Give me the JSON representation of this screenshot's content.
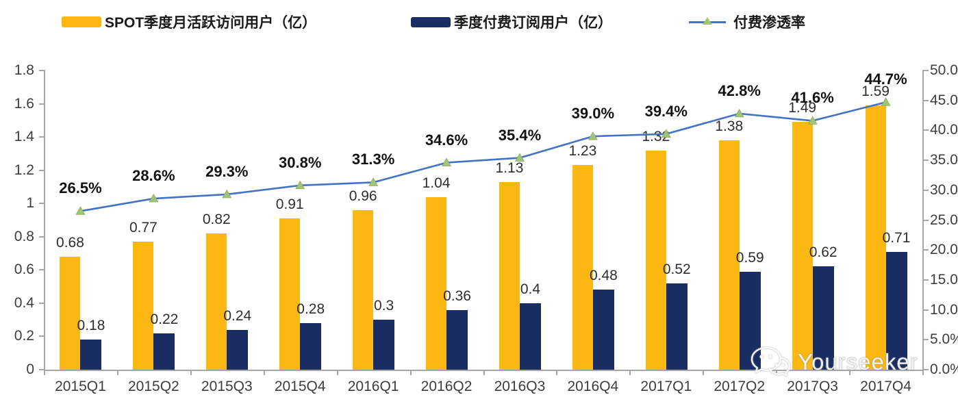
{
  "legend": {
    "items": [
      {
        "label": "SPOT季度月活跃访问用户（亿）",
        "swatch": "bar",
        "color": "#FBB813"
      },
      {
        "label": "季度付费订阅用户（亿）",
        "swatch": "bar",
        "color": "#1A2D62"
      },
      {
        "label": "付费渗透率",
        "swatch": "line",
        "color": "#4472C4",
        "marker": "triangle",
        "marker_color": "#A2C276"
      }
    ]
  },
  "watermark": {
    "text": "Yourseeker",
    "icon": "wechat-icon"
  },
  "chart_data": {
    "type": "combo-bar-line",
    "grid": false,
    "legend_position": "top",
    "categories": [
      "2015Q1",
      "2015Q2",
      "2015Q3",
      "2015Q4",
      "2016Q1",
      "2016Q2",
      "2016Q3",
      "2016Q4",
      "2017Q1",
      "2017Q2",
      "2017Q3",
      "2017Q4"
    ],
    "series": [
      {
        "name": "SPOT季度月活跃访问用户（亿）",
        "type": "bar",
        "axis": "left",
        "color": "#FBB813",
        "values": [
          0.68,
          0.77,
          0.82,
          0.91,
          0.96,
          1.04,
          1.13,
          1.23,
          1.32,
          1.38,
          1.49,
          1.59
        ],
        "labels": [
          "0.68",
          "0.77",
          "0.82",
          "0.91",
          "0.96",
          "1.04",
          "1.13",
          "1.23",
          "1.32",
          "1.38",
          "1.49",
          "1.59"
        ]
      },
      {
        "name": "季度付费订阅用户（亿）",
        "type": "bar",
        "axis": "left",
        "color": "#1A2D62",
        "values": [
          0.18,
          0.22,
          0.24,
          0.28,
          0.3,
          0.36,
          0.4,
          0.48,
          0.52,
          0.59,
          0.62,
          0.71
        ],
        "labels": [
          "0.18",
          "0.22",
          "0.24",
          "0.28",
          "0.3",
          "0.36",
          "0.4",
          "0.48",
          "0.52",
          "0.59",
          "0.62",
          "0.71"
        ]
      },
      {
        "name": "付费渗透率",
        "type": "line",
        "axis": "right",
        "color": "#4472C4",
        "marker": "triangle",
        "marker_color": "#A2C276",
        "values": [
          26.5,
          28.6,
          29.3,
          30.8,
          31.3,
          34.6,
          35.4,
          39.0,
          39.4,
          42.8,
          41.6,
          44.7
        ],
        "labels": [
          "26.5%",
          "28.6%",
          "29.3%",
          "30.8%",
          "31.3%",
          "34.6%",
          "35.4%",
          "39.0%",
          "39.4%",
          "42.8%",
          "41.6%",
          "44.7%"
        ]
      }
    ],
    "left_axis": {
      "min": 0,
      "max": 1.8,
      "ticks": [
        "0",
        "0.2",
        "0.4",
        "0.6",
        "0.8",
        "1",
        "1.2",
        "1.4",
        "1.6",
        "1.8"
      ]
    },
    "right_axis": {
      "min": 0,
      "max": 50,
      "ticks": [
        "0.0%",
        "5.0%",
        "10.0%",
        "15.0%",
        "20.0%",
        "25.0%",
        "30.0%",
        "35.0%",
        "40.0%",
        "45.0%",
        "50.0%"
      ]
    }
  }
}
